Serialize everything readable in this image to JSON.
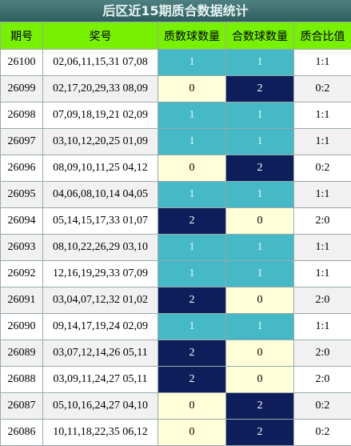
{
  "title": "后区近15期质合数据统计",
  "table": {
    "header": [
      "期号",
      "奖号",
      "质数球数量",
      "合数球数量",
      "质合比值"
    ],
    "rows": [
      [
        "26100",
        "02,06,11,15,31 07,08",
        "1",
        "1",
        "1:1"
      ],
      [
        "26099",
        "02,17,20,29,33 08,09",
        "0",
        "2",
        "0:2"
      ],
      [
        "26098",
        "07,09,18,19,21 02,09",
        "1",
        "1",
        "1:1"
      ],
      [
        "26097",
        "03,10,12,20,25 01,09",
        "1",
        "1",
        "1:1"
      ],
      [
        "26096",
        "08,09,10,11,25 04,12",
        "0",
        "2",
        "0:2"
      ],
      [
        "26095",
        "04,06,08,10,14 04,05",
        "1",
        "1",
        "1:1"
      ],
      [
        "26094",
        "05,14,15,17,33 01,07",
        "2",
        "0",
        "2:0"
      ],
      [
        "26093",
        "08,10,22,26,29 03,10",
        "1",
        "1",
        "1:1"
      ],
      [
        "26092",
        "12,16,19,29,33 07,09",
        "1",
        "1",
        "1:1"
      ],
      [
        "26091",
        "03,04,07,12,32 01,02",
        "2",
        "0",
        "2:0"
      ],
      [
        "26090",
        "09,14,17,19,24 02,09",
        "1",
        "1",
        "1:1"
      ],
      [
        "26089",
        "03,07,12,14,26 05,11",
        "2",
        "0",
        "2:0"
      ],
      [
        "26088",
        "03,09,11,24,27 05,11",
        "2",
        "0",
        "2:0"
      ],
      [
        "26087",
        "05,10,16,24,27 04,10",
        "0",
        "2",
        "0:2"
      ],
      [
        "26086",
        "10,11,18,22,35 06,12",
        "0",
        "2",
        "0:2"
      ]
    ]
  }
}
